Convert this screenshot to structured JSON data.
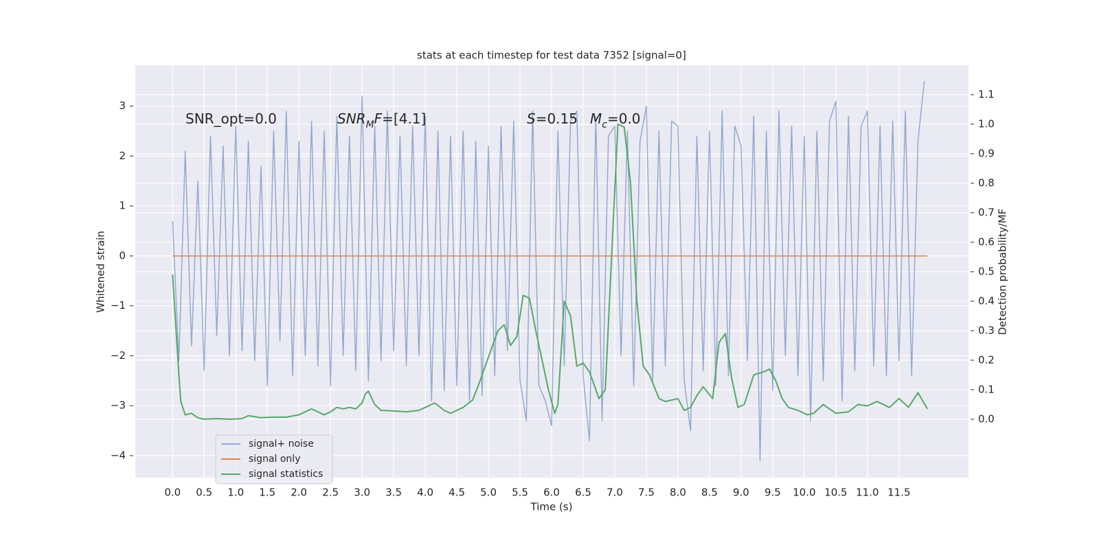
{
  "chart_data": {
    "type": "line",
    "title": "stats at each timestep for test data 7352 [signal=0]",
    "xlabel": "Time (s)",
    "ylabel": "Whitened strain",
    "y2label": "Detection probability/MF",
    "xlim": [
      -0.59,
      12.6
    ],
    "ylim": [
      -4.44,
      3.82
    ],
    "y2lim": [
      -0.198,
      1.2
    ],
    "xticks": [
      {
        "value": 0,
        "label": "0.0"
      },
      0.5,
      {
        "value": 1,
        "label": "1.0"
      },
      1.5,
      {
        "value": 2,
        "label": "2.0"
      },
      2.5,
      {
        "value": 3,
        "label": "3.0"
      },
      3.5,
      {
        "value": 4,
        "label": "4.0"
      },
      4.5,
      {
        "value": 5,
        "label": "5.0"
      },
      5.5,
      {
        "value": 6,
        "label": "6.0"
      },
      6.5,
      {
        "value": 7,
        "label": "7.0"
      },
      7.5,
      {
        "value": 8,
        "label": "8.0"
      },
      8.5,
      {
        "value": 9,
        "label": "9.0"
      },
      9.5,
      {
        "value": 10,
        "label": "10.0"
      },
      10.5,
      {
        "value": 11,
        "label": "11.0"
      },
      11.5
    ],
    "yticks": [
      {
        "value": -4,
        "label": "−4"
      },
      {
        "value": -3,
        "label": "−3"
      },
      {
        "value": -2,
        "label": "−2"
      },
      {
        "value": -1,
        "label": "−1"
      },
      0,
      1,
      2,
      3
    ],
    "y2ticks": [
      {
        "value": 0,
        "label": "0.0"
      },
      0.1,
      0.2,
      0.3,
      0.4,
      0.5,
      0.6,
      0.7,
      0.8,
      0.9,
      {
        "value": 1,
        "label": "1.0"
      },
      1.1
    ],
    "grid": true,
    "legend": "lower left",
    "annotations": [
      [
        {
          "text": "SNR_opt=0.0"
        }
      ],
      [
        {
          "text": "SNR",
          "italic": true
        },
        {
          "text": "M",
          "italic": true,
          "sub": true
        },
        {
          "text": "F",
          "italic": true
        },
        {
          "text": "=[4.1]"
        }
      ],
      [
        {
          "text": "S",
          "italic": true
        },
        {
          "text": "=0.15"
        }
      ],
      [
        {
          "text": "M",
          "italic": true
        },
        {
          "text": "c",
          "italic": true,
          "sub": true
        },
        {
          "text": "=0.0"
        }
      ]
    ],
    "series": [
      {
        "name": "signal+ noise",
        "color": "#4c72b0",
        "opacity": 0.55,
        "x": [
          0,
          0.1,
          0.2,
          0.3,
          0.4,
          0.5,
          0.6,
          0.7,
          0.8,
          0.9,
          1,
          1.1,
          1.2,
          1.3,
          1.4,
          1.5,
          1.6,
          1.7,
          1.8,
          1.9,
          2,
          2.1,
          2.2,
          2.3,
          2.4,
          2.5,
          2.6,
          2.7,
          2.8,
          2.9,
          3,
          3.1,
          3.2,
          3.3,
          3.4,
          3.5,
          3.6,
          3.7,
          3.8,
          3.9,
          4,
          4.1,
          4.2,
          4.3,
          4.4,
          4.5,
          4.6,
          4.7,
          4.8,
          4.9,
          5,
          5.1,
          5.2,
          5.3,
          5.4,
          5.5,
          5.6,
          5.7,
          5.8,
          5.9,
          6,
          6.1,
          6.2,
          6.3,
          6.4,
          6.5,
          6.6,
          6.7,
          6.8,
          6.9,
          7,
          7.1,
          7.2,
          7.3,
          7.4,
          7.5,
          7.6,
          7.7,
          7.8,
          7.9,
          8,
          8.1,
          8.2,
          8.3,
          8.4,
          8.5,
          8.6,
          8.7,
          8.8,
          8.9,
          9,
          9.1,
          9.2,
          9.3,
          9.4,
          9.5,
          9.6,
          9.7,
          9.8,
          9.9,
          10,
          10.1,
          10.2,
          10.3,
          10.4,
          10.5,
          10.6,
          10.7,
          10.8,
          10.9,
          11,
          11.1,
          11.2,
          11.3,
          11.4,
          11.5,
          11.6,
          11.7,
          11.8,
          11.9
        ],
        "values": [
          0.7,
          -2.1,
          2.1,
          -1.8,
          1.5,
          -2.3,
          2.4,
          -1.6,
          2.2,
          -2.0,
          2.6,
          -1.9,
          2.3,
          -2.1,
          1.8,
          -2.6,
          2.5,
          -1.7,
          2.9,
          -2.4,
          2.3,
          -2.0,
          2.7,
          -2.2,
          2.5,
          -2.6,
          2.8,
          -2.0,
          2.4,
          -2.3,
          3.2,
          -2.5,
          2.6,
          -2.1,
          2.9,
          -1.9,
          2.4,
          -2.2,
          2.6,
          -2.0,
          2.8,
          -2.9,
          2.5,
          -2.7,
          2.4,
          -2.6,
          2.5,
          -2.9,
          2.3,
          -2.8,
          2.2,
          -2.4,
          2.6,
          -1.9,
          2.7,
          -2.5,
          -3.3,
          2.9,
          -2.6,
          -2.9,
          -3.4,
          2.5,
          -2.2,
          2.7,
          2.9,
          -2.4,
          -3.7,
          2.8,
          -3.3,
          2.4,
          2.6,
          -2.0,
          2.5,
          -2.6,
          2.3,
          3.0,
          -2.5,
          2.5,
          -2.2,
          2.7,
          2.6,
          -2.5,
          -3.5,
          2.4,
          -2.3,
          2.5,
          -2.6,
          2.9,
          -2.4,
          2.6,
          2.2,
          -2.1,
          2.8,
          -4.1,
          2.5,
          -2.7,
          2.9,
          -2.0,
          2.6,
          -2.4,
          2.4,
          -3.3,
          2.5,
          -2.5,
          2.7,
          3.1,
          -2.9,
          2.8,
          -2.3,
          2.6,
          2.9,
          -2.2,
          2.6,
          -2.4,
          2.7,
          -2.1,
          2.9,
          -2.4,
          2.3,
          3.5
        ]
      },
      {
        "name": "signal only",
        "color": "#dd8452",
        "opacity": 1,
        "x": [
          0,
          11.95
        ],
        "values": [
          0,
          0
        ]
      },
      {
        "name": "signal statistics",
        "color": "#55a868",
        "opacity": 1,
        "axis": "y2",
        "x": [
          0,
          0.1,
          0.13,
          0.2,
          0.3,
          0.4,
          0.5,
          0.7,
          0.9,
          1.1,
          1.2,
          1.4,
          1.6,
          1.8,
          2.0,
          2.1,
          2.2,
          2.4,
          2.5,
          2.6,
          2.7,
          2.8,
          2.9,
          3.0,
          3.05,
          3.1,
          3.2,
          3.3,
          3.5,
          3.7,
          3.9,
          4.0,
          4.15,
          4.3,
          4.4,
          4.6,
          4.75,
          4.85,
          5.0,
          5.15,
          5.25,
          5.35,
          5.45,
          5.55,
          5.65,
          5.75,
          5.85,
          5.95,
          6.05,
          6.1,
          6.2,
          6.3,
          6.4,
          6.5,
          6.6,
          6.7,
          6.75,
          6.85,
          6.95,
          7.05,
          7.15,
          7.25,
          7.35,
          7.45,
          7.55,
          7.7,
          7.8,
          8.0,
          8.1,
          8.2,
          8.3,
          8.4,
          8.55,
          8.65,
          8.75,
          8.85,
          8.95,
          9.05,
          9.2,
          9.35,
          9.45,
          9.55,
          9.65,
          9.75,
          9.9,
          10.05,
          10.15,
          10.3,
          10.5,
          10.7,
          10.85,
          11.0,
          11.15,
          11.35,
          11.5,
          11.65,
          11.8,
          11.95
        ],
        "values": [
          0.49,
          0.15,
          0.06,
          0.015,
          0.02,
          0.005,
          0.0,
          0.002,
          0.0,
          0.002,
          0.012,
          0.005,
          0.007,
          0.007,
          0.015,
          0.025,
          0.035,
          0.015,
          0.025,
          0.04,
          0.035,
          0.04,
          0.035,
          0.055,
          0.085,
          0.095,
          0.05,
          0.03,
          0.028,
          0.025,
          0.03,
          0.04,
          0.055,
          0.03,
          0.02,
          0.04,
          0.065,
          0.12,
          0.21,
          0.3,
          0.32,
          0.25,
          0.28,
          0.42,
          0.41,
          0.3,
          0.2,
          0.1,
          0.02,
          0.05,
          0.4,
          0.35,
          0.18,
          0.19,
          0.16,
          0.1,
          0.07,
          0.1,
          0.55,
          1.0,
          0.99,
          0.8,
          0.4,
          0.18,
          0.15,
          0.07,
          0.06,
          0.07,
          0.03,
          0.04,
          0.08,
          0.11,
          0.07,
          0.26,
          0.29,
          0.14,
          0.04,
          0.05,
          0.15,
          0.16,
          0.17,
          0.13,
          0.07,
          0.04,
          0.03,
          0.015,
          0.02,
          0.05,
          0.02,
          0.025,
          0.05,
          0.045,
          0.06,
          0.04,
          0.07,
          0.04,
          0.09,
          0.035
        ]
      }
    ]
  }
}
